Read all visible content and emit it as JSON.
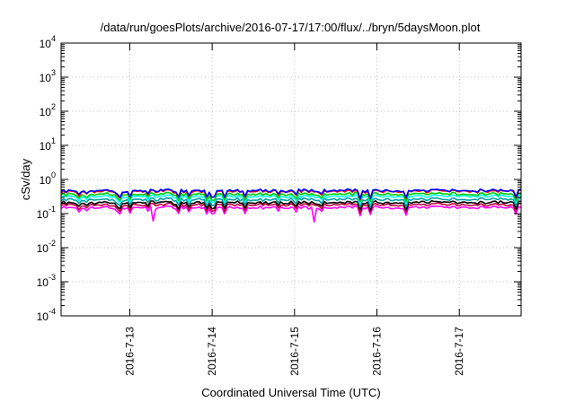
{
  "chart_data": {
    "type": "line",
    "title": "/data/run/goesPlots/archive/2016-07-17/17:00/flux/../bryn/5daysMoon.plot",
    "xlabel": "Coordinated Universal Time (UTC)",
    "ylabel": "cSv/day",
    "yscale": "log",
    "ylim": [
      0.0001,
      10000
    ],
    "xlim": [
      "2016-07-12 04:00",
      "2016-07-17 18:00"
    ],
    "grid": true,
    "legend": "none",
    "x_ticks": [
      {
        "label": "2016-7-13",
        "value": "2016-07-13"
      },
      {
        "label": "2016-7-14",
        "value": "2016-07-14"
      },
      {
        "label": "2016-7-15",
        "value": "2016-07-15"
      },
      {
        "label": "2016-7-16",
        "value": "2016-07-16"
      },
      {
        "label": "2016-7-17",
        "value": "2016-07-17"
      }
    ],
    "y_ticks": [
      {
        "base": "10",
        "exp": "-4",
        "value": 0.0001
      },
      {
        "base": "10",
        "exp": "-3",
        "value": 0.001
      },
      {
        "base": "10",
        "exp": "-2",
        "value": 0.01
      },
      {
        "base": "10",
        "exp": "-1",
        "value": 0.1
      },
      {
        "base": "10",
        "exp": "0",
        "value": 1
      },
      {
        "base": "10",
        "exp": "1",
        "value": 10
      },
      {
        "base": "10",
        "exp": "2",
        "value": 100
      },
      {
        "base": "10",
        "exp": "3",
        "value": 1000
      },
      {
        "base": "10",
        "exp": "4",
        "value": 10000
      }
    ],
    "series": [
      {
        "color": "#ff00ff",
        "level": 0.15
      },
      {
        "color": "#c0003c",
        "level": 0.18
      },
      {
        "color": "#000000",
        "level": 0.21
      },
      {
        "color": "#00a0a0",
        "level": 0.26
      },
      {
        "color": "#00ffff",
        "level": 0.32
      },
      {
        "color": "#00cc00",
        "level": 0.37
      },
      {
        "color": "#ff0000",
        "level": 0.45
      },
      {
        "color": "#0000ff",
        "level": 0.47
      }
    ]
  }
}
